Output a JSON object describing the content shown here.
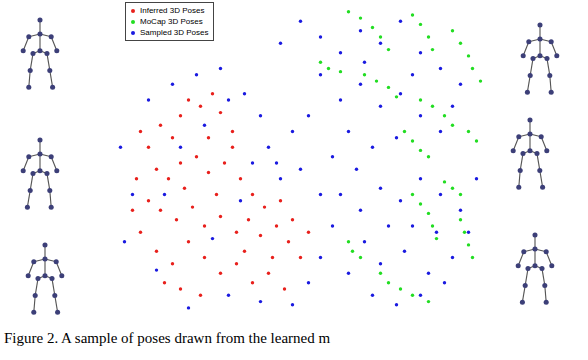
{
  "chart_data": {
    "type": "scatter",
    "caption": "Figure 2. A sample of poses drawn from the learned m",
    "xlim": [
      0,
      100
    ],
    "ylim": [
      0,
      100
    ],
    "tick_labels": false,
    "grid": false,
    "legend": "top-left",
    "series": [
      {
        "name": "Inferred 3D Poses",
        "color": "#e8201c",
        "marker": "dot",
        "x": [
          10,
          12,
          15,
          18,
          20,
          22,
          25,
          28,
          30,
          33,
          14,
          17,
          20,
          24,
          27,
          31,
          35,
          38,
          12,
          15,
          19,
          23,
          26,
          30,
          34,
          37,
          40,
          44,
          47,
          50,
          10,
          14,
          18,
          22,
          26,
          30,
          34,
          38,
          42,
          46,
          20,
          25,
          16,
          36,
          41,
          45,
          48,
          52,
          29,
          33,
          9,
          8,
          21,
          43,
          27
        ],
        "y": [
          60,
          55,
          62,
          58,
          65,
          70,
          68,
          72,
          66,
          60,
          48,
          45,
          50,
          52,
          47,
          50,
          45,
          40,
          38,
          35,
          32,
          36,
          30,
          33,
          28,
          32,
          27,
          30,
          25,
          20,
          28,
          22,
          18,
          25,
          20,
          15,
          18,
          12,
          15,
          10,
          10,
          8,
          12,
          22,
          36,
          38,
          32,
          28,
          40,
          55,
          45,
          35,
          42,
          20,
          58
        ]
      },
      {
        "name": "MoCap 3D Poses",
        "color": "#22dd22",
        "marker": "dot",
        "x": [
          62,
          65,
          68,
          70,
          72,
          78,
          80,
          82,
          83,
          88,
          90,
          92,
          93,
          95,
          66,
          69,
          72,
          74,
          55,
          57,
          60,
          80,
          83,
          86,
          88,
          76,
          78,
          80,
          82,
          92,
          94,
          78,
          80,
          82,
          83,
          84,
          90,
          91,
          92,
          93,
          70,
          72,
          75,
          78,
          82,
          62,
          63,
          65,
          86,
          88,
          90
        ],
        "y": [
          98,
          96,
          93,
          90,
          86,
          97,
          94,
          90,
          86,
          92,
          88,
          84,
          80,
          76,
          78,
          76,
          74,
          71,
          82,
          80,
          79,
          70,
          68,
          65,
          62,
          60,
          57,
          54,
          52,
          60,
          57,
          40,
          37,
          34,
          30,
          26,
          32,
          28,
          24,
          20,
          15,
          12,
          10,
          8,
          6,
          25,
          22,
          20,
          44,
          42,
          40
        ]
      },
      {
        "name": "Sampled 3D Poses",
        "color": "#1a1ae0",
        "marker": "dot",
        "x": [
          5,
          8,
          12,
          18,
          24,
          30,
          36,
          40,
          42,
          38,
          45,
          50,
          55,
          58,
          55,
          52,
          48,
          40,
          32,
          22,
          14,
          6,
          16,
          28,
          35,
          44,
          26,
          20,
          32,
          48,
          45,
          50,
          55,
          60,
          65,
          70,
          75,
          80,
          85,
          90,
          55,
          60,
          65,
          70,
          75,
          80,
          85,
          62,
          68,
          74,
          52,
          58,
          88,
          78,
          66,
          60,
          65,
          70,
          75,
          80,
          85,
          90,
          92,
          88,
          82,
          76,
          70,
          66,
          72,
          78,
          84,
          62,
          68,
          74,
          80,
          86,
          64,
          94
        ],
        "y": [
          55,
          40,
          70,
          75,
          78,
          80,
          72,
          65,
          55,
          50,
          45,
          48,
          40,
          30,
          20,
          12,
          5,
          6,
          8,
          4,
          16,
          25,
          40,
          26,
          38,
          50,
          62,
          55,
          70,
          60,
          88,
          95,
          90,
          85,
          92,
          88,
          95,
          85,
          80,
          75,
          78,
          70,
          75,
          68,
          72,
          65,
          60,
          60,
          55,
          58,
          65,
          52,
          68,
          78,
          82,
          40,
          35,
          42,
          38,
          45,
          40,
          35,
          28,
          20,
          15,
          22,
          18,
          25,
          30,
          30,
          28,
          15,
          8,
          5,
          8,
          12,
          48,
          45
        ]
      }
    ]
  }
}
